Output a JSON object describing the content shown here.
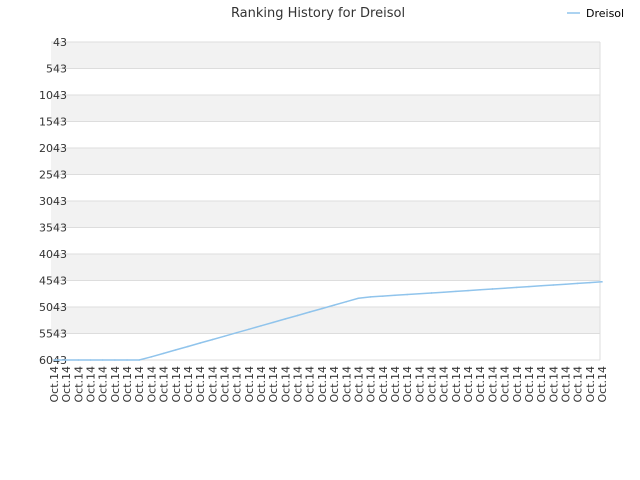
{
  "chart_data": {
    "type": "line",
    "title": "Ranking History for Dreisol",
    "xlabel": "",
    "ylabel": "",
    "y_reversed": true,
    "ylim": [
      6043,
      43
    ],
    "yticks": [
      "43",
      "543",
      "1043",
      "1543",
      "2043",
      "2543",
      "3043",
      "3543",
      "4043",
      "4543",
      "5043",
      "5543",
      "6043"
    ],
    "categories": [
      "Oct.14",
      "Oct.14",
      "Oct.14",
      "Oct.14",
      "Oct.14",
      "Oct.14",
      "Oct.14",
      "Oct.14",
      "Oct.14",
      "Oct.14",
      "Oct.14",
      "Oct.14",
      "Oct.14",
      "Oct.14",
      "Oct.14",
      "Oct.14",
      "Oct.14",
      "Oct.14",
      "Oct.14",
      "Oct.14",
      "Oct.14",
      "Oct.14",
      "Oct.14",
      "Oct.14",
      "Oct.14",
      "Oct.14",
      "Oct.14",
      "Oct.14",
      "Oct.14",
      "Oct.14",
      "Oct.14",
      "Oct.14",
      "Oct.14",
      "Oct.14",
      "Oct.14",
      "Oct.14",
      "Oct.14",
      "Oct.14",
      "Oct.14",
      "Oct.14",
      "Oct.14",
      "Oct.14",
      "Oct.14",
      "Oct.14",
      "Oct.14",
      "Oct.14"
    ],
    "series": [
      {
        "name": "Dreisol",
        "color": "#90c4ec",
        "values": [
          6043,
          6043,
          6043,
          6043,
          6043,
          6043,
          6043,
          6043,
          5983,
          5918,
          5853,
          5788,
          5723,
          5658,
          5593,
          5528,
          5463,
          5398,
          5333,
          5268,
          5203,
          5138,
          5073,
          5008,
          4943,
          4878,
          4853,
          4838,
          4823,
          4808,
          4793,
          4778,
          4763,
          4748,
          4733,
          4718,
          4703,
          4688,
          4673,
          4658,
          4643,
          4628,
          4613,
          4598,
          4583,
          4568
        ]
      }
    ],
    "legend_position": "top-right",
    "grid": true,
    "band_colors": [
      "#f2f2f2",
      "#ffffff"
    ]
  }
}
